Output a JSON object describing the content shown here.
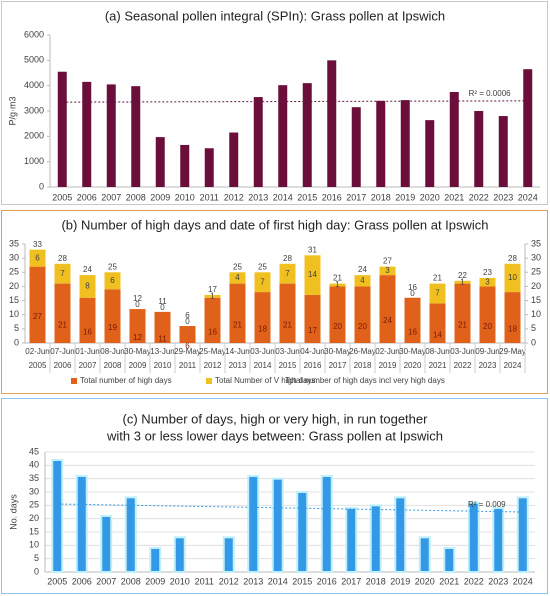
{
  "chart_data": [
    {
      "type": "bar",
      "title": "(a) Seasonal pollen integral (SPIn): Grass pollen at Ipswich",
      "ylabel": "P/g·m3",
      "categories": [
        "2005",
        "2006",
        "2007",
        "2008",
        "2009",
        "2010",
        "2011",
        "2012",
        "2013",
        "2014",
        "2015",
        "2016",
        "2017",
        "2018",
        "2019",
        "2020",
        "2021",
        "2022",
        "2023",
        "2024"
      ],
      "values": [
        4550,
        4150,
        4050,
        3980,
        1970,
        1660,
        1530,
        2150,
        3550,
        4020,
        4100,
        5000,
        3150,
        3400,
        3430,
        2640,
        3750,
        3000,
        2800,
        4650
      ],
      "color": "#6b0f3a",
      "ylim": [
        0,
        6000
      ],
      "yticks": [
        0,
        1000,
        2000,
        3000,
        4000,
        5000,
        6000
      ],
      "grid": false,
      "trend": {
        "label": "R² = 0.0006",
        "values": [
          3350,
          3400
        ],
        "color": "#5a1a4a"
      }
    },
    {
      "type": "stacked_bar",
      "title": "(b) Number of high days and date of first high day: Grass pollen at Ipswich",
      "categories": [
        "02-Jun",
        "07-Jun",
        "01-Jun",
        "08-Jun",
        "30-May",
        "13-Jun",
        "29-May",
        "25-May",
        "14-Jun",
        "03-Jun",
        "03-Jun",
        "04-Jun",
        "30-May",
        "26-May",
        "02-Jun",
        "30-May",
        "08-Jun",
        "03-Jun",
        "09-Jun",
        "29-May"
      ],
      "groups": [
        "2005",
        "2006",
        "2007",
        "2008",
        "2009",
        "2010",
        "2011",
        "2012",
        "2013",
        "2014",
        "2015",
        "2016",
        "2017",
        "2018",
        "2019",
        "2020",
        "2021",
        "2022",
        "2023",
        "2024"
      ],
      "series": [
        {
          "name": "Total number of high days",
          "color": "#e0611a",
          "values": [
            27,
            21,
            16,
            19,
            12,
            11,
            6,
            16,
            21,
            18,
            21,
            17,
            20,
            20,
            24,
            16,
            14,
            21,
            20,
            18
          ]
        },
        {
          "name": "Total Number of V high days",
          "color": "#f0c020",
          "values": [
            6,
            7,
            8,
            6,
            0,
            0,
            0,
            1,
            4,
            7,
            7,
            14,
            1,
            4,
            3,
            0,
            7,
            1,
            3,
            10
          ]
        },
        {
          "name": "Total number of high days incl very high days",
          "values": [
            33,
            28,
            24,
            25,
            12,
            11,
            6,
            17,
            25,
            25,
            28,
            31,
            21,
            24,
            27,
            16,
            21,
            22,
            23,
            28
          ]
        }
      ],
      "ylim": [
        0,
        35
      ],
      "yticks": [
        0,
        5,
        10,
        15,
        20,
        25,
        30,
        35
      ],
      "y2lim": [
        0,
        35
      ],
      "y2ticks": [
        0,
        5,
        10,
        15,
        20,
        25,
        30,
        35
      ],
      "grid": false,
      "legend": "bottom"
    },
    {
      "type": "bar",
      "title": [
        "(c) Number of days, high or very high, in run together",
        "with 3 or less lower days between: Grass pollen at Ipswich"
      ],
      "ylabel": "No. days",
      "categories": [
        "2005",
        "2006",
        "2007",
        "2008",
        "2009",
        "2010",
        "2011",
        "2012",
        "2013",
        "2014",
        "2015",
        "2016",
        "2017",
        "2018",
        "2019",
        "2020",
        "2021",
        "2022",
        "2023",
        "2024"
      ],
      "values": [
        42,
        36,
        21,
        28,
        9,
        13,
        0,
        13,
        36,
        35,
        30,
        36,
        24,
        25,
        28,
        13,
        9,
        26,
        24,
        28
      ],
      "color": "#3399e6",
      "ylim": [
        0,
        45
      ],
      "yticks": [
        0,
        5,
        10,
        15,
        20,
        25,
        30,
        35,
        40,
        45
      ],
      "grid": true,
      "trend": {
        "label": "R² = 0.009",
        "values": [
          25.5,
          22.5
        ],
        "color": "#3399e6"
      }
    }
  ]
}
